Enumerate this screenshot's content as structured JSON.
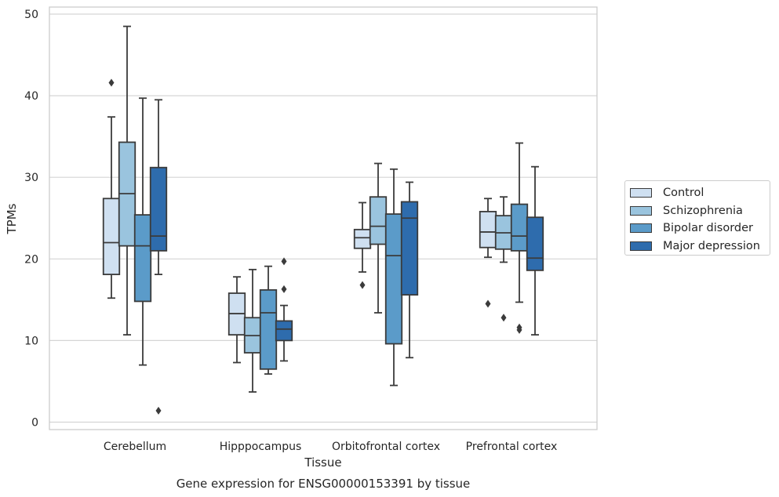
{
  "chart_data": {
    "type": "boxplot",
    "caption": "Gene expression for ENSG00000153391 by tissue",
    "xlabel": "Tissue",
    "ylabel": "TPMs",
    "ylim": [
      -0.5,
      51
    ],
    "yticks": [
      0,
      10,
      20,
      30,
      40,
      50
    ],
    "grid": "horizontal",
    "legend_position": "right",
    "categories": [
      "Cerebellum",
      "Hipppocampus",
      "Orbitofrontal cortex",
      "Prefrontal cortex"
    ],
    "series": [
      {
        "name": "Control",
        "color": "#cfe0f1",
        "boxes": [
          {
            "whisker_low": 15.2,
            "q1": 18.1,
            "median": 22.0,
            "q3": 27.4,
            "whisker_high": 37.4,
            "outliers": [
              41.6
            ]
          },
          {
            "whisker_low": 7.3,
            "q1": 10.7,
            "median": 13.3,
            "q3": 15.8,
            "whisker_high": 17.8,
            "outliers": []
          },
          {
            "whisker_low": 18.4,
            "q1": 21.3,
            "median": 22.6,
            "q3": 23.6,
            "whisker_high": 26.9,
            "outliers": [
              16.8
            ]
          },
          {
            "whisker_low": 20.2,
            "q1": 21.4,
            "median": 23.3,
            "q3": 25.8,
            "whisker_high": 27.4,
            "outliers": [
              14.5
            ]
          }
        ]
      },
      {
        "name": "Schizophrenia",
        "color": "#9ac4de",
        "boxes": [
          {
            "whisker_low": 10.7,
            "q1": 21.6,
            "median": 28.0,
            "q3": 34.3,
            "whisker_high": 48.5,
            "outliers": []
          },
          {
            "whisker_low": 3.7,
            "q1": 8.5,
            "median": 10.6,
            "q3": 12.8,
            "whisker_high": 18.7,
            "outliers": []
          },
          {
            "whisker_low": 13.4,
            "q1": 21.8,
            "median": 24.0,
            "q3": 27.6,
            "whisker_high": 31.7,
            "outliers": []
          },
          {
            "whisker_low": 19.6,
            "q1": 21.2,
            "median": 23.2,
            "q3": 25.3,
            "whisker_high": 27.6,
            "outliers": [
              12.8
            ]
          }
        ]
      },
      {
        "name": "Bipolar disorder",
        "color": "#5b9bc9",
        "boxes": [
          {
            "whisker_low": 7.0,
            "q1": 14.8,
            "median": 21.6,
            "q3": 25.4,
            "whisker_high": 39.7,
            "outliers": []
          },
          {
            "whisker_low": 5.9,
            "q1": 6.5,
            "median": 13.4,
            "q3": 16.2,
            "whisker_high": 19.1,
            "outliers": []
          },
          {
            "whisker_low": 4.5,
            "q1": 9.6,
            "median": 20.4,
            "q3": 25.5,
            "whisker_high": 31.0,
            "outliers": []
          },
          {
            "whisker_low": 14.7,
            "q1": 21.0,
            "median": 22.8,
            "q3": 26.7,
            "whisker_high": 34.2,
            "outliers": [
              11.6,
              11.3
            ]
          }
        ]
      },
      {
        "name": "Major depression",
        "color": "#2e6cad",
        "boxes": [
          {
            "whisker_low": 18.1,
            "q1": 21.0,
            "median": 22.8,
            "q3": 31.2,
            "whisker_high": 39.5,
            "outliers": [
              1.4
            ]
          },
          {
            "whisker_low": 7.5,
            "q1": 10.0,
            "median": 11.4,
            "q3": 12.4,
            "whisker_high": 14.3,
            "outliers": [
              19.7,
              16.3
            ]
          },
          {
            "whisker_low": 7.9,
            "q1": 15.6,
            "median": 25.0,
            "q3": 27.0,
            "whisker_high": 29.4,
            "outliers": []
          },
          {
            "whisker_low": 10.7,
            "q1": 18.6,
            "median": 20.1,
            "q3": 25.1,
            "whisker_high": 31.3,
            "outliers": []
          }
        ]
      }
    ]
  }
}
